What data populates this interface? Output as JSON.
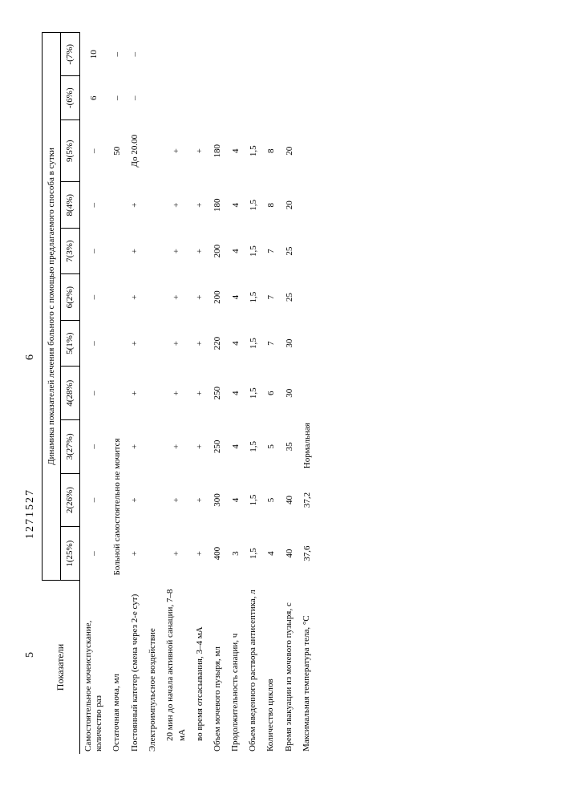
{
  "header": {
    "left_num": "5",
    "doc_id": "1271527",
    "right_num": "6"
  },
  "table": {
    "param_header": "Показатели",
    "super_header": "Динамика показателей лечения больного с помощью предлагаемого способа в сутки",
    "columns": [
      "1(25%)",
      "2(26%)",
      "3(27%)",
      "4(28%)",
      "5(1%)",
      "6(2%)",
      "7(3%)",
      "8(4%)",
      "9(5%)",
      "-(6%)",
      "-(7%)"
    ],
    "rows": [
      {
        "label": "Самостоятельное мочеиспускание, количество раз",
        "cells": [
          "–",
          "–",
          "–",
          "–",
          "–",
          "–",
          "–",
          "–",
          "–",
          "6",
          "10"
        ]
      },
      {
        "label": "Остаточная моча, мл",
        "cells": [
          "",
          "",
          "",
          "",
          "",
          "",
          "",
          "",
          "50",
          "–",
          "–"
        ],
        "span_text": "Больной самостоятельно не мочится",
        "span_cols": 8
      },
      {
        "label": "Постоянный катетер (смена через 2-е сут)",
        "cells": [
          "+",
          "+",
          "+",
          "+",
          "+",
          "+",
          "+",
          "+",
          "До 20.00",
          "–",
          "–"
        ]
      },
      {
        "label": "Электроимпульсное воздействие",
        "cells": [
          "",
          "",
          "",
          "",
          "",
          "",
          "",
          "",
          "",
          "",
          ""
        ]
      },
      {
        "sublabel": "20 мин до начала активной санации, 7–8 мА",
        "cells": [
          "+",
          "+",
          "+",
          "+",
          "+",
          "+",
          "+",
          "+",
          "+",
          "",
          ""
        ]
      },
      {
        "sublabel": "во время отсасывания, 3–4 мА",
        "cells": [
          "+",
          "+",
          "+",
          "+",
          "+",
          "+",
          "+",
          "+",
          "+",
          "",
          ""
        ]
      },
      {
        "label": "Объем мочевого пузыря, мл",
        "cells": [
          "400",
          "300",
          "250",
          "250",
          "220",
          "200",
          "200",
          "180",
          "180",
          "",
          ""
        ]
      },
      {
        "label": "Продолжительность санации, ч",
        "cells": [
          "3",
          "4",
          "4",
          "4",
          "4",
          "4",
          "4",
          "4",
          "4",
          "",
          ""
        ]
      },
      {
        "label": "Объем введенного раствора антисептика, л",
        "cells": [
          "1,5",
          "1,5",
          "1,5",
          "1,5",
          "1,5",
          "1,5",
          "1,5",
          "1,5",
          "1,5",
          "",
          ""
        ]
      },
      {
        "label": "Количество циклов",
        "cells": [
          "4",
          "5",
          "5",
          "6",
          "7",
          "7",
          "7",
          "8",
          "8",
          "",
          ""
        ]
      },
      {
        "label": "Время эвакуации из мочевого пузыря, с",
        "cells": [
          "40",
          "40",
          "35",
          "30",
          "30",
          "25",
          "25",
          "20",
          "20",
          "",
          ""
        ]
      },
      {
        "label": "Максимальная температура тела, °С",
        "cells": [
          "37,6",
          "37,2",
          "",
          "",
          "",
          "",
          "",
          "",
          "",
          "",
          ""
        ],
        "tail_text": "Нормальная",
        "tail_from": 2
      }
    ]
  }
}
